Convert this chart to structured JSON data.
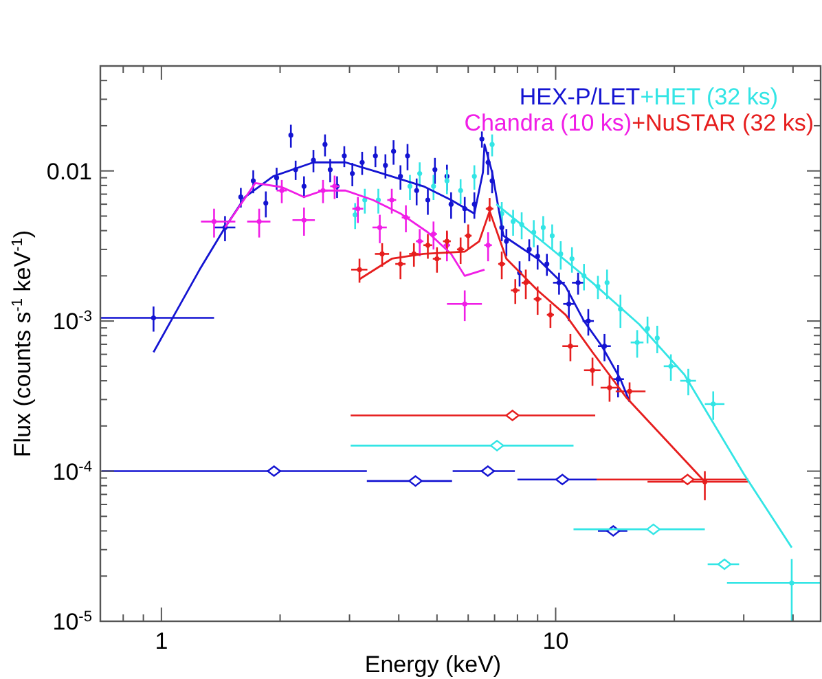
{
  "chart_data": {
    "type": "scatter",
    "xlabel": "Energy (keV)",
    "ylabel": "Flux (counts s$^{-1}$ keV$^{-1}$)",
    "log": "xy",
    "grid": false,
    "legend": "top right",
    "xlim": [
      0.7,
      47
    ],
    "ylim": [
      1e-05,
      0.05
    ],
    "xticks": [
      {
        "value": 0.8,
        "label": null
      },
      {
        "value": 0.9,
        "label": null
      },
      1,
      {
        "value": 2,
        "label": null
      },
      {
        "value": 3,
        "label": null
      },
      {
        "value": 4,
        "label": null
      },
      {
        "value": 5,
        "label": null
      },
      {
        "value": 6,
        "label": null
      },
      {
        "value": 7,
        "label": null
      },
      {
        "value": 8,
        "label": null
      },
      {
        "value": 9,
        "label": null
      },
      10,
      {
        "value": 20,
        "label": null
      },
      {
        "value": 30,
        "label": null
      },
      {
        "value": 40,
        "label": null
      }
    ],
    "yticks": [
      {
        "value": 1e-05,
        "label": "10$^{-5}$"
      },
      {
        "value": 2e-05,
        "label": null
      },
      {
        "value": 3e-05,
        "label": null
      },
      {
        "value": 4e-05,
        "label": null
      },
      {
        "value": 5e-05,
        "label": null
      },
      {
        "value": 6e-05,
        "label": null
      },
      {
        "value": 7e-05,
        "label": null
      },
      {
        "value": 8e-05,
        "label": null
      },
      {
        "value": 9e-05,
        "label": null
      },
      {
        "value": 0.0001,
        "label": "10$^{-4}$"
      },
      {
        "value": 0.0002,
        "label": null
      },
      {
        "value": 0.0003,
        "label": null
      },
      {
        "value": 0.0004,
        "label": null
      },
      {
        "value": 0.0005,
        "label": null
      },
      {
        "value": 0.0006,
        "label": null
      },
      {
        "value": 0.0007,
        "label": null
      },
      {
        "value": 0.0008,
        "label": null
      },
      {
        "value": 0.0009,
        "label": null
      },
      {
        "value": 0.001,
        "label": "10$^{-3}$"
      },
      {
        "value": 0.002,
        "label": null
      },
      {
        "value": 0.003,
        "label": null
      },
      {
        "value": 0.004,
        "label": null
      },
      {
        "value": 0.005,
        "label": null
      },
      {
        "value": 0.006,
        "label": null
      },
      {
        "value": 0.007,
        "label": null
      },
      {
        "value": 0.008,
        "label": null
      },
      {
        "value": 0.009,
        "label": null
      },
      0.01,
      {
        "value": 0.02,
        "label": null
      },
      {
        "value": 0.03,
        "label": null
      },
      {
        "value": 0.04,
        "label": null
      }
    ],
    "series": [
      {
        "name": "HEX-P/LET",
        "marker": "circle",
        "color": "#1414d2",
        "x": [
          0.955,
          1.45,
          1.59,
          1.71,
          1.84,
          1.96,
          2.13,
          2.19,
          2.3,
          2.43,
          2.6,
          2.68,
          2.79,
          2.91,
          3.05,
          3.23,
          3.49,
          3.7,
          3.88,
          4.04,
          4.21,
          4.44,
          4.74,
          4.94,
          5.3,
          5.43,
          5.88,
          6.22,
          6.5,
          6.74,
          6.9,
          7.3,
          7.5,
          8.1,
          8.57,
          9.0,
          9.5,
          10.2,
          10.8,
          11.4,
          12.1,
          13.3,
          14.4
        ],
        "values": [
          0.00105,
          0.0042,
          0.0067,
          0.0086,
          0.0061,
          0.009,
          0.0173,
          0.0102,
          0.0079,
          0.0118,
          0.015,
          0.0102,
          0.0079,
          0.0126,
          0.0096,
          0.0114,
          0.0126,
          0.0109,
          0.0135,
          0.0092,
          0.0126,
          0.0074,
          0.0064,
          0.0102,
          0.0092,
          0.006,
          0.0056,
          0.006,
          0.0163,
          0.0114,
          0.0086,
          0.0042,
          0.0034,
          0.0021,
          0.003,
          0.0027,
          0.0024,
          0.0018,
          0.0013,
          0.0018,
          0.001,
          0.00068,
          0.00041
        ],
        "errors": [
          0.0002,
          0.0008,
          0.001,
          0.0015,
          0.0012,
          0.0015,
          0.003,
          0.0015,
          0.0013,
          0.002,
          0.0025,
          0.0018,
          0.0013,
          0.002,
          0.0017,
          0.002,
          0.002,
          0.002,
          0.0025,
          0.0017,
          0.0025,
          0.0015,
          0.0013,
          0.002,
          0.0018,
          0.0012,
          0.0011,
          0.0012,
          0.002,
          0.002,
          0.0015,
          0.0008,
          0.0007,
          0.0004,
          0.0005,
          0.0005,
          0.0004,
          0.0003,
          0.0003,
          0.0003,
          0.0002,
          0.00014,
          0.0001
        ],
        "xerrors": [
          [
            0.7,
            1.36
          ],
          [
            1.36,
            1.54
          ],
          null,
          null,
          null,
          null,
          null,
          null,
          null,
          null,
          null,
          null,
          null,
          null,
          null,
          null,
          null,
          null,
          null,
          null,
          null,
          null,
          null,
          null,
          null,
          null,
          null,
          null,
          null,
          null,
          null,
          null,
          null,
          null,
          null,
          null,
          null,
          0.35,
          0.35,
          0.4,
          0.4,
          0.5,
          0.5
        ]
      },
      {
        "name": "+HET (32 ks)",
        "marker": "circle",
        "color": "#33e5e5",
        "x": [
          3.1,
          3.28,
          3.55,
          4.27,
          4.52,
          4.9,
          5.3,
          5.74,
          6.22,
          6.9,
          7.3,
          7.8,
          8.2,
          8.8,
          9.3,
          9.8,
          10.3,
          11.0,
          11.8,
          12.8,
          13.5,
          14.6,
          16.1,
          17.1,
          18.1,
          19.6,
          21.7,
          25.1,
          39.7
        ],
        "values": [
          0.0051,
          0.0064,
          0.0064,
          0.0079,
          0.0096,
          0.0079,
          0.0086,
          0.0074,
          0.0092,
          0.015,
          0.0052,
          0.0046,
          0.0044,
          0.0039,
          0.0042,
          0.0037,
          0.0028,
          0.0026,
          0.002,
          0.0017,
          0.0018,
          0.0012,
          0.00072,
          0.00089,
          0.00077,
          0.0005,
          0.0004,
          0.00028,
          1.8e-05
        ],
        "errors": [
          0.001,
          0.0012,
          0.0012,
          0.0015,
          0.0018,
          0.0015,
          0.0016,
          0.0014,
          0.0017,
          0.0025,
          0.001,
          0.0009,
          0.0009,
          0.0008,
          0.0008,
          0.0007,
          0.0006,
          0.0005,
          0.0004,
          0.0003,
          0.0004,
          0.0003,
          0.00015,
          0.00018,
          0.00016,
          0.0001,
          8e-05,
          6e-05,
          [
            1e-05,
            2.6e-05
          ]
        ],
        "xerrors": [
          null,
          null,
          null,
          null,
          null,
          null,
          null,
          null,
          null,
          null,
          null,
          null,
          null,
          null,
          null,
          null,
          null,
          null,
          null,
          null,
          null,
          null,
          0.6,
          null,
          null,
          0.8,
          1,
          [
            23.9,
            26.8
          ],
          [
            27.2,
            47
          ]
        ]
      },
      {
        "name": "Chandra (10 ks)",
        "marker": "circle",
        "color": "#f01ee6",
        "x": [
          1.36,
          1.77,
          2.02,
          2.3,
          2.57,
          2.75,
          3.15,
          3.58,
          3.84,
          4.17,
          4.52,
          4.9,
          5.3,
          5.88,
          6.74
        ],
        "values": [
          0.0046,
          0.0046,
          0.0074,
          0.0047,
          0.0074,
          0.0079,
          0.0056,
          0.0042,
          0.0064,
          0.0049,
          0.0034,
          0.0038,
          0.0032,
          0.0013,
          0.0032
        ],
        "errors": [
          0.001,
          0.001,
          0.0013,
          0.001,
          0.0013,
          0.0014,
          0.0011,
          0.0009,
          0.0012,
          0.001,
          0.0007,
          0.0008,
          0.0007,
          [
            0.001,
            0.0016
          ],
          0.0007
        ],
        "xerrors": [
          [
            1.26,
            1.54
          ],
          0.12,
          0.06,
          0.15,
          0.07,
          0.07,
          0.1,
          0.15,
          0.1,
          0.1,
          0.1,
          0.1,
          0.1,
          [
            5.3,
            6.5
          ],
          0.15
        ]
      },
      {
        "name": "+NuSTAR (32 ks)",
        "marker": "circle",
        "color": "#e61e1e",
        "x": [
          3.18,
          3.63,
          4.04,
          4.37,
          4.74,
          5.0,
          5.3,
          5.74,
          6.0,
          6.8,
          7.3,
          7.9,
          8.4,
          9.0,
          9.7,
          10.9,
          12.4,
          13.7,
          15.4,
          23.9
        ],
        "values": [
          0.0022,
          0.0028,
          0.0024,
          0.0028,
          0.0032,
          0.0026,
          0.0034,
          0.003,
          0.0037,
          0.0056,
          0.0024,
          0.0016,
          0.0018,
          0.0014,
          0.0011,
          0.00068,
          0.00047,
          0.00036,
          0.00034,
          8.5e-05
        ],
        "errors": [
          0.0004,
          0.0005,
          0.0005,
          0.0005,
          0.0006,
          0.0005,
          0.0006,
          0.0006,
          0.0007,
          0.001,
          0.0005,
          0.0003,
          0.0004,
          0.0003,
          0.0002,
          0.00014,
          0.0001,
          7e-05,
          5e-05,
          [
            6.4e-05,
            0.0001
          ]
        ],
        "xerrors": [
          0.15,
          0.15,
          0.12,
          0.12,
          0.12,
          0.12,
          0.12,
          0.12,
          0.12,
          0.15,
          0.15,
          0.2,
          0.2,
          0.2,
          0.2,
          0.5,
          0.6,
          0.7,
          [
            14.2,
            16.9
          ],
          [
            17.1,
            30.8
          ]
        ]
      },
      {
        "type": "line",
        "color": "#1414d2",
        "x": [
          0.955,
          1.07,
          1.25,
          1.45,
          1.63,
          1.92,
          2.43,
          2.93,
          3.55,
          4.62,
          5.43,
          6.22,
          6.54,
          6.6,
          6.9,
          7.37,
          9.0,
          10.6,
          11.8,
          13.1,
          14.6,
          15.4
        ],
        "values": [
          0.00062,
          0.00106,
          0.0022,
          0.0042,
          0.0067,
          0.0092,
          0.0114,
          0.0114,
          0.0098,
          0.0079,
          0.0064,
          0.0052,
          0.0098,
          0.015,
          0.0098,
          0.0037,
          0.0026,
          0.0017,
          0.001,
          0.00068,
          0.00041,
          0.00029
        ]
      },
      {
        "type": "line",
        "color": "#33e5e5",
        "x": [
          7.07,
          9.5,
          12.4,
          16.3,
          21.2,
          30.0,
          39.7
        ],
        "values": [
          0.006,
          0.0032,
          0.0018,
          0.00095,
          0.00044,
          9.6e-05,
          3.1e-05
        ]
      },
      {
        "type": "line",
        "color": "#f01ee6",
        "x": [
          1.45,
          1.73,
          2.02,
          2.3,
          2.57,
          2.93,
          3.44,
          4.04,
          4.74,
          5.43,
          5.88,
          6.6
        ],
        "values": [
          0.0042,
          0.0083,
          0.0078,
          0.0067,
          0.0074,
          0.0074,
          0.0064,
          0.0052,
          0.0039,
          0.0028,
          0.002,
          0.0022
        ]
      },
      {
        "type": "line",
        "color": "#e61e1e",
        "x": [
          3.18,
          3.84,
          4.62,
          5.88,
          6.4,
          6.8,
          7.5,
          9.0,
          10.6,
          12.4,
          15.1,
          23.9
        ],
        "values": [
          0.0019,
          0.0026,
          0.0028,
          0.0029,
          0.0034,
          0.0054,
          0.0026,
          0.0016,
          0.0011,
          0.00062,
          0.00031,
          8.5e-05
        ]
      },
      {
        "marker": "diamond",
        "color": "#1414d2",
        "x": [
          1.93,
          4.41,
          6.73,
          10.4,
          14.0
        ],
        "values": [
          0.0001,
          8.6e-05,
          0.0001,
          8.8e-05,
          4e-05
        ],
        "xerrors": [
          [
            0.705,
            3.32
          ],
          [
            3.32,
            5.46
          ],
          [
            5.48,
            7.88
          ],
          [
            8.0,
            12.7
          ],
          [
            12.8,
            15.2
          ]
        ]
      },
      {
        "marker": "diamond",
        "color": "#e61e1e",
        "x": [
          7.77,
          21.6
        ],
        "values": [
          0.000235,
          8.8e-05
        ],
        "xerrors": [
          [
            3.02,
            12.6
          ],
          [
            12.7,
            30.8
          ]
        ]
      },
      {
        "marker": "diamond",
        "color": "#33e5e5",
        "x": [
          7.1,
          17.7,
          26.8
        ],
        "values": [
          0.000148,
          4.1e-05,
          2.4e-05
        ],
        "xerrors": [
          [
            3.02,
            11.1
          ],
          [
            11.1,
            23.9
          ],
          [
            24.3,
            29.2
          ]
        ]
      }
    ]
  }
}
